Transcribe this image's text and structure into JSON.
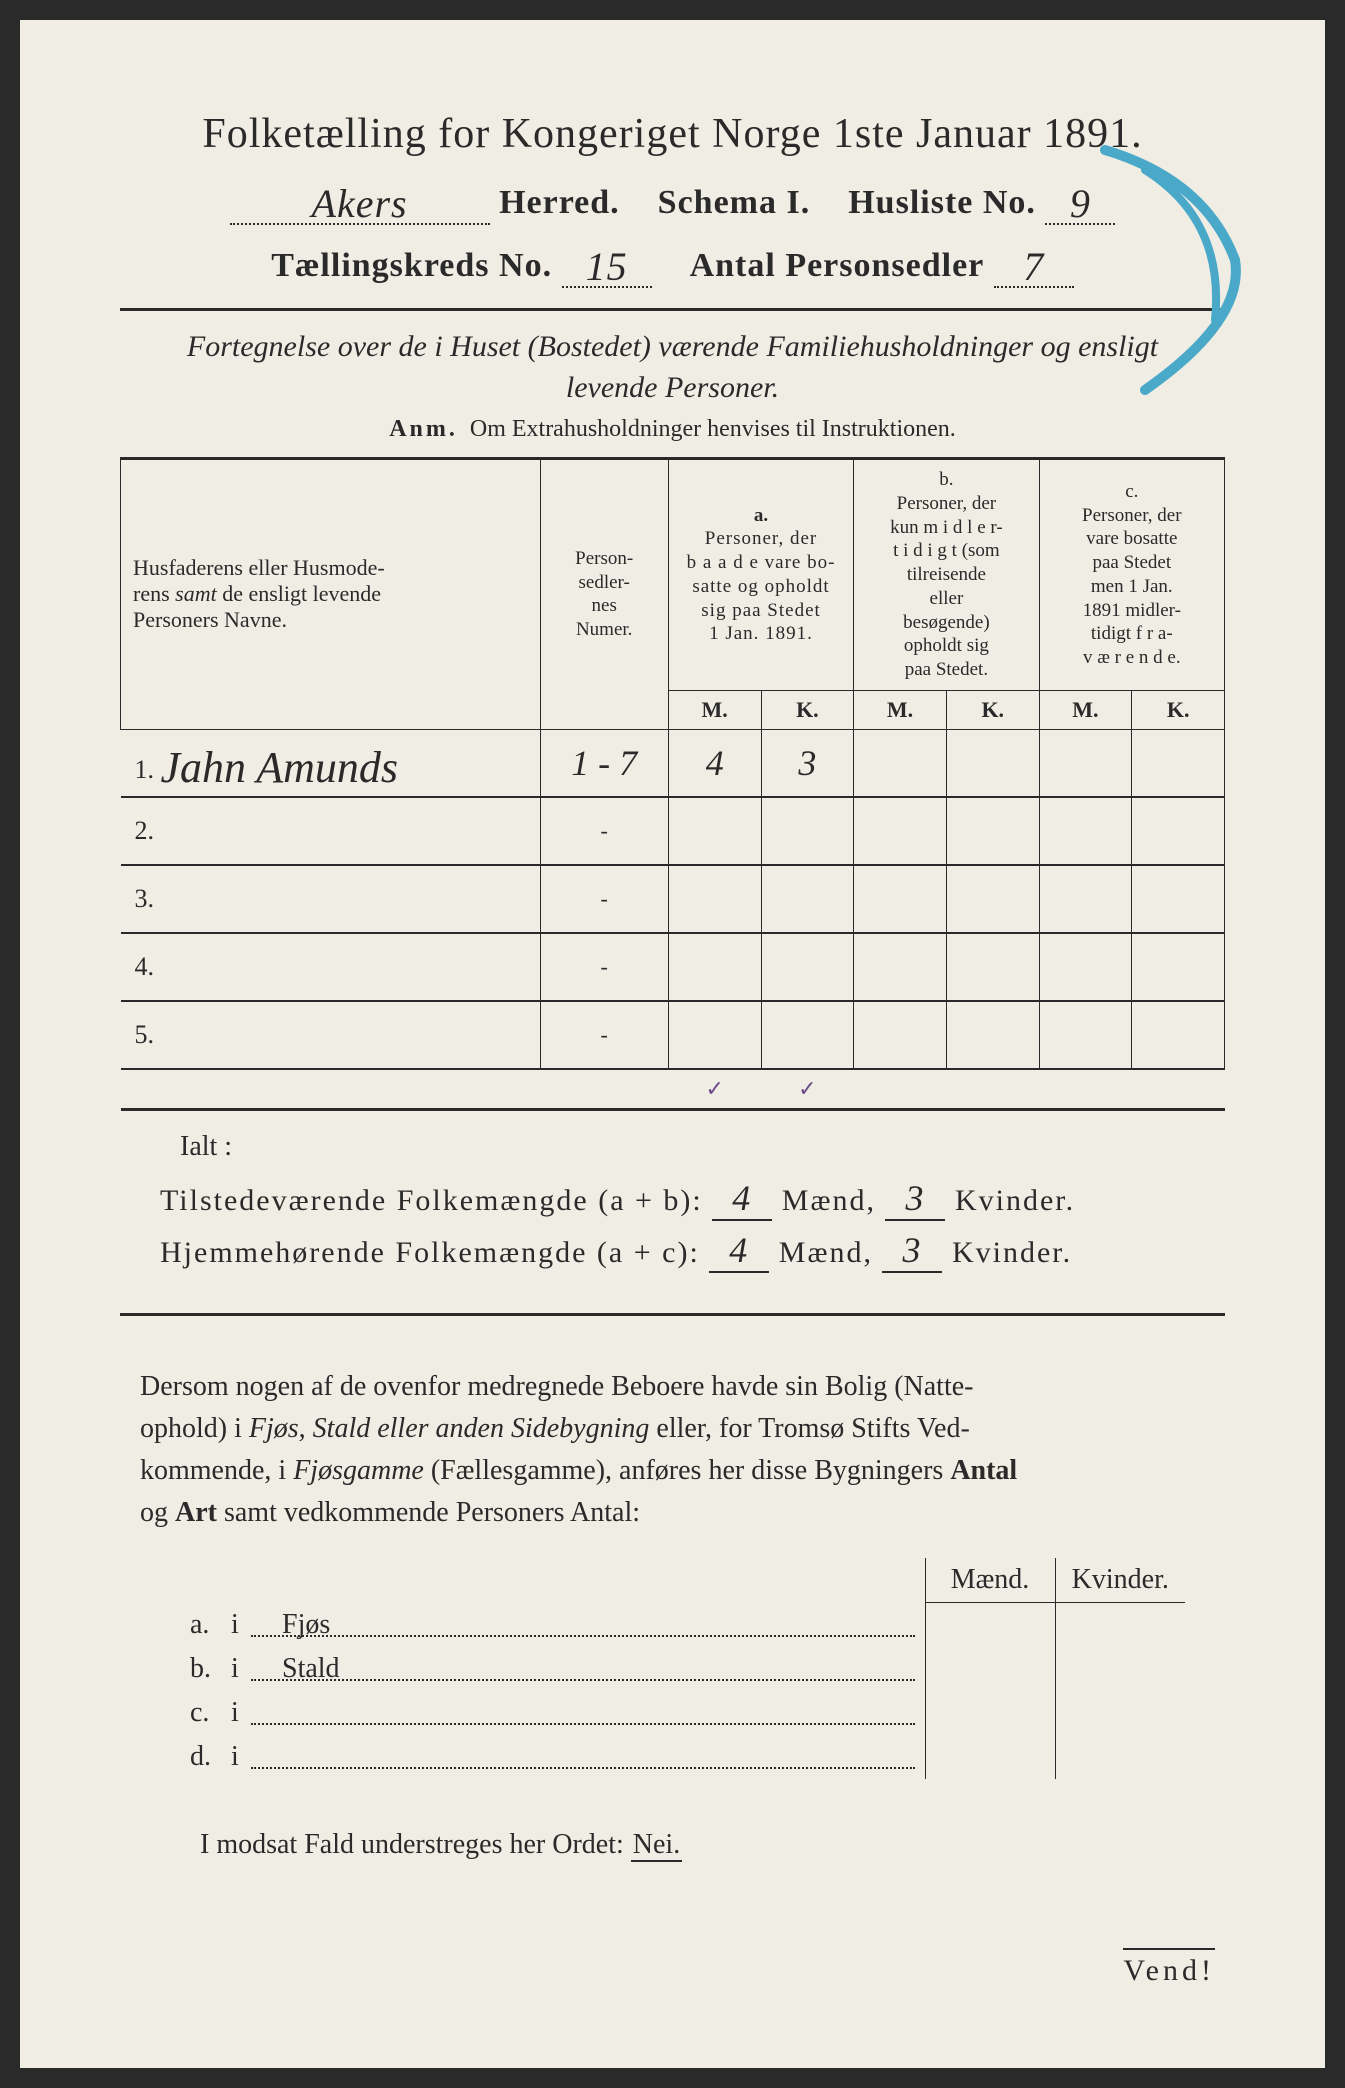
{
  "colors": {
    "paper_bg": "#f0ede4",
    "ink": "#2a2a2a",
    "pencil_blue": "#4aa8c8",
    "tick_purple": "#6a4a8a"
  },
  "header": {
    "title": "Folketælling for Kongeriget Norge 1ste Januar 1891.",
    "herred_value": "Akers",
    "herred_label": "Herred.",
    "schema": "Schema I.",
    "husliste_label": "Husliste No.",
    "husliste_value": "9",
    "kreds_label": "Tællingskreds No.",
    "kreds_value": "15",
    "antal_label": "Antal Personsedler",
    "antal_value": "7"
  },
  "subtitle": {
    "line1": "Fortegnelse over de i Huset (Bostedet) værende Familiehusholdninger og ensligt",
    "line2": "levende Personer.",
    "anm_label": "Anm.",
    "anm_text": "Om Extrahusholdninger henvises til Instruktionen."
  },
  "table": {
    "type": "table",
    "col_names_header": "Husfaderens eller Husmoderens samt de ensligt levende Personers Navne.",
    "col_sedler": "Person-sedler-nes Numer.",
    "col_a_sup": "a.",
    "col_a": "Personer, der baade vare bosatte og opholdt sig paa Stedet 1 Jan. 1891.",
    "col_b_sup": "b.",
    "col_b": "Personer, der kun midlertidigt (som tilreisende eller besøgende) opholdt sig paa Stedet.",
    "col_c_sup": "c.",
    "col_c": "Personer, der vare bosatte paa Stedet men 1 Jan. 1891 midlertidigt fraværende.",
    "mk_m": "M.",
    "mk_k": "K.",
    "rows": [
      {
        "num": "1.",
        "name": "Jahn Amunds",
        "sedler": "1 - 7",
        "a_m": "4",
        "a_k": "3",
        "b_m": "",
        "b_k": "",
        "c_m": "",
        "c_k": ""
      },
      {
        "num": "2.",
        "name": "",
        "sedler": "-",
        "a_m": "",
        "a_k": "",
        "b_m": "",
        "b_k": "",
        "c_m": "",
        "c_k": ""
      },
      {
        "num": "3.",
        "name": "",
        "sedler": "-",
        "a_m": "",
        "a_k": "",
        "b_m": "",
        "b_k": "",
        "c_m": "",
        "c_k": ""
      },
      {
        "num": "4.",
        "name": "",
        "sedler": "-",
        "a_m": "",
        "a_k": "",
        "b_m": "",
        "b_k": "",
        "c_m": "",
        "c_k": ""
      },
      {
        "num": "5.",
        "name": "",
        "sedler": "-",
        "a_m": "",
        "a_k": "",
        "b_m": "",
        "b_k": "",
        "c_m": "",
        "c_k": ""
      }
    ],
    "tick_a_m": "✓",
    "tick_a_k": "✓"
  },
  "summary": {
    "ialt": "Ialt :",
    "line1_label": "Tilstedeværende Folkemængde (a + b):",
    "line1_m": "4",
    "line1_k": "3",
    "line2_label": "Hjemmehørende Folkemængde (a + c):",
    "line2_m": "4",
    "line2_k": "3",
    "maend": "Mænd,",
    "kvinder": "Kvinder."
  },
  "paragraph": "Dersom nogen af de ovenfor medregnede Beboere havde sin Bolig (Natteophold) i Fjøs, Stald eller anden Sidebygning eller, for Tromsø Stifts Vedkommende, i Fjøsgamme (Fællesgamme), anføres her disse Bygningers Antal og Art samt vedkommende Personers Antal:",
  "bottom": {
    "maend": "Mænd.",
    "kvinder": "Kvinder.",
    "rows": [
      {
        "lbl": "a.",
        "i": "i",
        "txt": "Fjøs"
      },
      {
        "lbl": "b.",
        "i": "i",
        "txt": "Stald"
      },
      {
        "lbl": "c.",
        "i": "i",
        "txt": ""
      },
      {
        "lbl": "d.",
        "i": "i",
        "txt": ""
      }
    ]
  },
  "nei": {
    "text": "I modsat Fald understreges her Ordet:",
    "word": "Nei."
  },
  "vend": "Vend!"
}
